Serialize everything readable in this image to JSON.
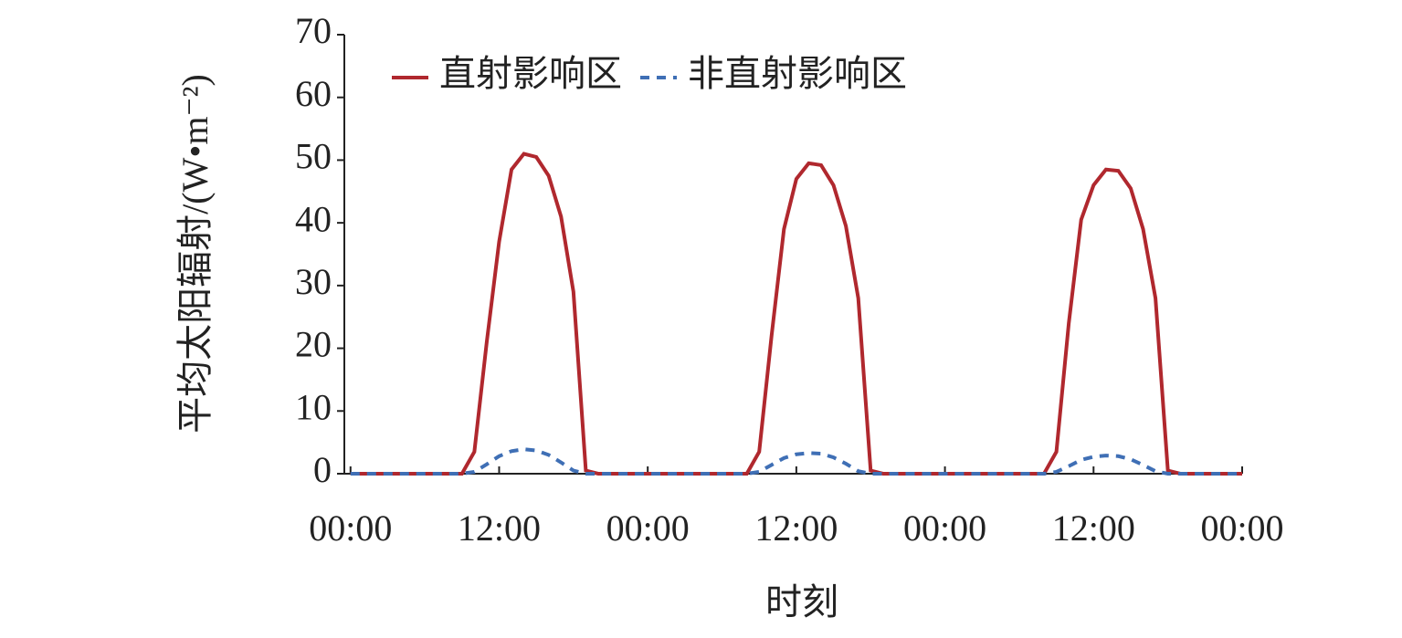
{
  "chart_data": {
    "type": "line",
    "ylabel": "平均太阳辐射/(W•m⁻²)",
    "xlabel": "时刻",
    "x": [
      0,
      1,
      2,
      3,
      4,
      5,
      6,
      7,
      8,
      9,
      10,
      11,
      12,
      13,
      14,
      15,
      16,
      17,
      18,
      19,
      20,
      21,
      22,
      23,
      24,
      25,
      26,
      27,
      28,
      29,
      30,
      31,
      32,
      33,
      34,
      35,
      36,
      37,
      38,
      39,
      40,
      41,
      42,
      43,
      44,
      45,
      46,
      47,
      48,
      49,
      50,
      51,
      52,
      53,
      54,
      55,
      56,
      57,
      58,
      59,
      60,
      61,
      62,
      63,
      64,
      65,
      66,
      67,
      68,
      69,
      70,
      71,
      72
    ],
    "series": [
      {
        "name": "直射影响区",
        "color": "#b0282e",
        "style": "solid",
        "values": [
          0,
          0,
          0,
          0,
          0,
          0,
          0,
          0,
          0,
          0,
          3.5,
          21,
          37,
          48.5,
          51,
          50.5,
          47.5,
          41,
          29,
          0.5,
          0,
          0,
          0,
          0,
          0,
          0,
          0,
          0,
          0,
          0,
          0,
          0,
          0,
          3.5,
          22,
          39,
          47,
          49.5,
          49.2,
          46,
          39.5,
          28,
          0.5,
          0,
          0,
          0,
          0,
          0,
          0,
          0,
          0,
          0,
          0,
          0,
          0,
          0,
          0,
          3.5,
          24,
          40.5,
          46,
          48.5,
          48.3,
          45.5,
          39,
          28,
          0.5,
          0,
          0,
          0,
          0,
          0,
          0
        ]
      },
      {
        "name": "非直射影响区",
        "color": "#3f6fb5",
        "style": "dashed",
        "values": [
          0,
          0,
          0,
          0,
          0,
          0,
          0,
          0,
          0,
          0,
          0.3,
          1.5,
          2.8,
          3.6,
          3.9,
          3.7,
          3,
          1.8,
          0.5,
          0,
          0,
          0,
          0,
          0,
          0,
          0,
          0,
          0,
          0,
          0,
          0,
          0,
          0,
          0.3,
          1.4,
          2.5,
          3.1,
          3.3,
          3.2,
          2.6,
          1.6,
          0.4,
          0,
          0,
          0,
          0,
          0,
          0,
          0,
          0,
          0,
          0,
          0,
          0,
          0,
          0,
          0,
          0.3,
          1.2,
          2.2,
          2.7,
          2.9,
          2.8,
          2.3,
          1.4,
          0.4,
          0,
          0,
          0,
          0,
          0,
          0,
          0
        ]
      }
    ],
    "xlim": [
      -0.5,
      72
    ],
    "xticks": [
      {
        "value": 0,
        "label": "00:00"
      },
      {
        "value": 12,
        "label": "12:00"
      },
      {
        "value": 24,
        "label": "00:00"
      },
      {
        "value": 36,
        "label": "12:00"
      },
      {
        "value": 48,
        "label": "00:00"
      },
      {
        "value": 60,
        "label": "12:00"
      },
      {
        "value": 72,
        "label": "00:00"
      }
    ],
    "ylim": [
      0,
      70
    ],
    "yticks": [
      0,
      10,
      20,
      30,
      40,
      50,
      60,
      70
    ],
    "legend": "top-left"
  }
}
